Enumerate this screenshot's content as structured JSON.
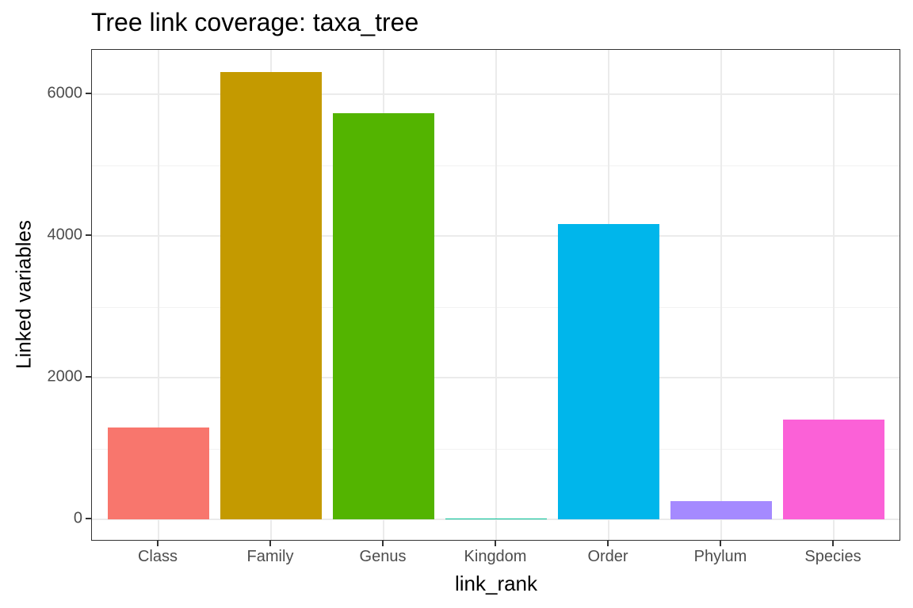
{
  "chart_data": {
    "type": "bar",
    "title": "Tree link coverage: taxa_tree",
    "xlabel": "link_rank",
    "ylabel": "Linked variables",
    "categories": [
      "Class",
      "Family",
      "Genus",
      "Kingdom",
      "Order",
      "Phylum",
      "Species"
    ],
    "values": [
      1296,
      6313,
      5732,
      3,
      4168,
      257,
      1408
    ],
    "colors": [
      "#F8766D",
      "#C49A00",
      "#53B400",
      "#00C094",
      "#00B6EB",
      "#A58AFF",
      "#FB61D7"
    ],
    "yticks": [
      0,
      2000,
      4000,
      6000
    ],
    "ytick_labels": [
      "0",
      "2000",
      "4000",
      "6000"
    ],
    "ylim": [
      -315,
      6630
    ],
    "grid": true,
    "legend": "none",
    "theme": "bw"
  }
}
